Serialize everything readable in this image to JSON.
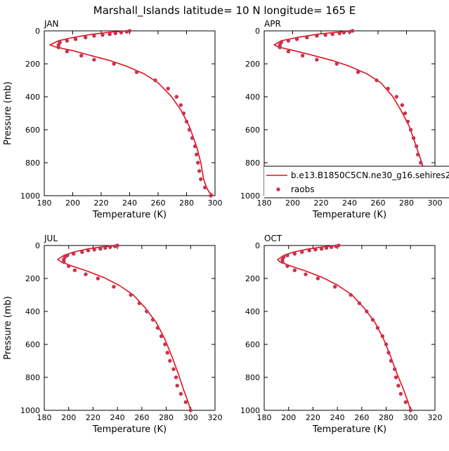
{
  "figure": {
    "title": "Marshall_Islands  latitude= 10 N longitude= 165 E"
  },
  "colors": {
    "model_line": "#e0141e",
    "raobs_marker": "#c8324f",
    "axes": "#000000"
  },
  "legend": {
    "panel": "APR",
    "placement": "bottom-right",
    "entries": [
      {
        "label": "b.e13.B1850C5CN.ne30_g16.sehires22_c",
        "style": "line"
      },
      {
        "label": "raobs",
        "style": "marker"
      }
    ]
  },
  "chart_data": [
    {
      "type": "line",
      "panel_label": "JAN",
      "xlabel": "Temperature (K)",
      "ylabel": "Pressure (mb)",
      "xlim": [
        180,
        300
      ],
      "ylim": [
        1000,
        0
      ],
      "y_inverted": true,
      "x_ticks": [
        180,
        200,
        220,
        240,
        260,
        280,
        300
      ],
      "y_ticks": [
        0,
        200,
        400,
        600,
        800,
        1000
      ],
      "grid": false,
      "series": [
        {
          "name": "b.e13.B1850C5CN.ne30_g16.sehires22_c",
          "kind": "line",
          "points": [
            [
              240,
              0
            ],
            [
              228,
              7
            ],
            [
              214,
              20
            ],
            [
              199,
              42
            ],
            [
              190,
              60
            ],
            [
              184,
              85
            ],
            [
              188,
              98
            ],
            [
              200,
              120
            ],
            [
              213,
              150
            ],
            [
              226,
              180
            ],
            [
              238,
              215
            ],
            [
              250,
              260
            ],
            [
              260,
              315
            ],
            [
              269,
              395
            ],
            [
              276,
              480
            ],
            [
              282,
              580
            ],
            [
              287,
              700
            ],
            [
              290,
              800
            ],
            [
              292,
              900
            ],
            [
              294,
              950
            ],
            [
              296,
              980
            ],
            [
              299,
              1000
            ]
          ]
        },
        {
          "name": "raobs",
          "kind": "scatter",
          "points": [
            [
              240,
              0
            ],
            [
              238,
              5
            ],
            [
              234,
              10
            ],
            [
              230,
              15
            ],
            [
              226,
              20
            ],
            [
              221,
              25
            ],
            [
              215,
              30
            ],
            [
              209,
              40
            ],
            [
              202,
              50
            ],
            [
              196,
              60
            ],
            [
              191,
              70
            ],
            [
              190,
              85
            ],
            [
              190,
              100
            ],
            [
              196,
              125
            ],
            [
              206,
              150
            ],
            [
              215,
              175
            ],
            [
              229,
              200
            ],
            [
              245,
              250
            ],
            [
              258,
              300
            ],
            [
              267,
              350
            ],
            [
              273,
              400
            ],
            [
              276,
              450
            ],
            [
              278,
              500
            ],
            [
              280,
              550
            ],
            [
              282,
              600
            ],
            [
              284,
              650
            ],
            [
              286,
              700
            ],
            [
              287,
              750
            ],
            [
              288,
              800
            ],
            [
              289,
              850
            ],
            [
              290,
              900
            ],
            [
              293,
              950
            ],
            [
              297,
              1000
            ]
          ]
        }
      ]
    },
    {
      "type": "line",
      "panel_label": "APR",
      "xlabel": "Temperature (K)",
      "ylabel": "",
      "xlim": [
        180,
        300
      ],
      "ylim": [
        1000,
        0
      ],
      "y_inverted": true,
      "x_ticks": [
        180,
        200,
        220,
        240,
        260,
        280,
        300
      ],
      "y_ticks": [
        0,
        200,
        400,
        600,
        800,
        1000
      ],
      "grid": false,
      "series": [
        {
          "name": "b.e13.B1850C5CN.ne30_g16.sehires22_c",
          "kind": "line",
          "points": [
            [
              243,
              0
            ],
            [
              233,
              7
            ],
            [
              218,
              20
            ],
            [
              203,
              40
            ],
            [
              192,
              60
            ],
            [
              187,
              85
            ],
            [
              190,
              98
            ],
            [
              201,
              120
            ],
            [
              215,
              150
            ],
            [
              228,
              180
            ],
            [
              240,
              215
            ],
            [
              252,
              260
            ],
            [
              262,
              315
            ],
            [
              270,
              395
            ],
            [
              276,
              480
            ],
            [
              282,
              580
            ],
            [
              286,
              680
            ],
            [
              290,
              780
            ],
            [
              293,
              870
            ],
            [
              296,
              940
            ],
            [
              298,
              975
            ],
            [
              300,
              1000
            ]
          ]
        },
        {
          "name": "raobs",
          "kind": "scatter",
          "points": [
            [
              242,
              0
            ],
            [
              240,
              5
            ],
            [
              236,
              10
            ],
            [
              233,
              15
            ],
            [
              228,
              20
            ],
            [
              223,
              25
            ],
            [
              217,
              30
            ],
            [
              210,
              40
            ],
            [
              203,
              50
            ],
            [
              197,
              60
            ],
            [
              192,
              70
            ],
            [
              191,
              85
            ],
            [
              191,
              100
            ],
            [
              197,
              125
            ],
            [
              207,
              150
            ],
            [
              217,
              175
            ],
            [
              231,
              200
            ],
            [
              246,
              250
            ],
            [
              259,
              300
            ],
            [
              267,
              350
            ],
            [
              273,
              400
            ],
            [
              277,
              450
            ],
            [
              279,
              500
            ],
            [
              281,
              550
            ],
            [
              283,
              600
            ],
            [
              285,
              650
            ],
            [
              287,
              700
            ],
            [
              288,
              750
            ],
            [
              290,
              800
            ],
            [
              291,
              850
            ],
            [
              292,
              900
            ],
            [
              296,
              950
            ],
            [
              299,
              1000
            ]
          ]
        }
      ]
    },
    {
      "type": "line",
      "panel_label": "JUL",
      "xlabel": "Temperature (K)",
      "ylabel": "Pressure (mb)",
      "xlim": [
        180,
        320
      ],
      "ylim": [
        1000,
        0
      ],
      "y_inverted": true,
      "x_ticks": [
        180,
        200,
        220,
        240,
        260,
        280,
        300,
        320
      ],
      "y_ticks": [
        0,
        200,
        400,
        600,
        800,
        1000
      ],
      "grid": false,
      "series": [
        {
          "name": "b.e13.B1850C5CN.ne30_g16.sehires22_c",
          "kind": "line",
          "points": [
            [
              241,
              0
            ],
            [
              229,
              7
            ],
            [
              216,
              20
            ],
            [
              204,
              40
            ],
            [
              196,
              60
            ],
            [
              191,
              85
            ],
            [
              194,
              100
            ],
            [
              203,
              125
            ],
            [
              215,
              155
            ],
            [
              229,
              195
            ],
            [
              241,
              240
            ],
            [
              253,
              300
            ],
            [
              263,
              380
            ],
            [
              272,
              470
            ],
            [
              279,
              570
            ],
            [
              285,
              680
            ],
            [
              290,
              780
            ],
            [
              294,
              870
            ],
            [
              298,
              950
            ],
            [
              300,
              1000
            ]
          ]
        },
        {
          "name": "raobs",
          "kind": "scatter",
          "points": [
            [
              240,
              0
            ],
            [
              238,
              5
            ],
            [
              234,
              10
            ],
            [
              230,
              15
            ],
            [
              226,
              20
            ],
            [
              221,
              25
            ],
            [
              216,
              30
            ],
            [
              211,
              40
            ],
            [
              204,
              50
            ],
            [
              199,
              60
            ],
            [
              197,
              70
            ],
            [
              196,
              85
            ],
            [
              196,
              100
            ],
            [
              200,
              125
            ],
            [
              205,
              150
            ],
            [
              214,
              175
            ],
            [
              224,
              200
            ],
            [
              237,
              250
            ],
            [
              251,
              300
            ],
            [
              258,
              350
            ],
            [
              264,
              400
            ],
            [
              269,
              450
            ],
            [
              273,
              500
            ],
            [
              276,
              550
            ],
            [
              279,
              600
            ],
            [
              281,
              650
            ],
            [
              283,
              700
            ],
            [
              286,
              750
            ],
            [
              288,
              800
            ],
            [
              289,
              850
            ],
            [
              292,
              900
            ],
            [
              296,
              950
            ],
            [
              300,
              1000
            ]
          ]
        }
      ]
    },
    {
      "type": "line",
      "panel_label": "OCT",
      "xlabel": "Temperature (K)",
      "ylabel": "",
      "xlim": [
        180,
        320
      ],
      "ylim": [
        1000,
        0
      ],
      "y_inverted": true,
      "x_ticks": [
        180,
        200,
        220,
        240,
        260,
        280,
        300,
        320
      ],
      "y_ticks": [
        0,
        200,
        400,
        600,
        800,
        1000
      ],
      "grid": false,
      "series": [
        {
          "name": "b.e13.B1850C5CN.ne30_g16.sehires22_c",
          "kind": "line",
          "points": [
            [
              242,
              0
            ],
            [
              230,
              7
            ],
            [
              217,
              20
            ],
            [
              204,
              40
            ],
            [
              196,
              60
            ],
            [
              191,
              85
            ],
            [
              193,
              100
            ],
            [
              202,
              125
            ],
            [
              214,
              155
            ],
            [
              228,
              195
            ],
            [
              240,
              240
            ],
            [
              252,
              300
            ],
            [
              262,
              380
            ],
            [
              271,
              470
            ],
            [
              278,
              570
            ],
            [
              284,
              680
            ],
            [
              289,
              780
            ],
            [
              294,
              870
            ],
            [
              298,
              950
            ],
            [
              300,
              1000
            ]
          ]
        },
        {
          "name": "raobs",
          "kind": "scatter",
          "points": [
            [
              241,
              0
            ],
            [
              239,
              5
            ],
            [
              235,
              10
            ],
            [
              231,
              15
            ],
            [
              227,
              20
            ],
            [
              222,
              25
            ],
            [
              217,
              30
            ],
            [
              211,
              40
            ],
            [
              205,
              50
            ],
            [
              199,
              60
            ],
            [
              196,
              70
            ],
            [
              195,
              85
            ],
            [
              195,
              100
            ],
            [
              199,
              125
            ],
            [
              205,
              150
            ],
            [
              214,
              175
            ],
            [
              224,
              200
            ],
            [
              238,
              250
            ],
            [
              251,
              300
            ],
            [
              258,
              350
            ],
            [
              264,
              400
            ],
            [
              269,
              450
            ],
            [
              273,
              500
            ],
            [
              277,
              550
            ],
            [
              280,
              600
            ],
            [
              282,
              650
            ],
            [
              284,
              700
            ],
            [
              287,
              750
            ],
            [
              288,
              800
            ],
            [
              290,
              850
            ],
            [
              292,
              900
            ],
            [
              296,
              950
            ],
            [
              300,
              1000
            ]
          ]
        }
      ]
    }
  ]
}
